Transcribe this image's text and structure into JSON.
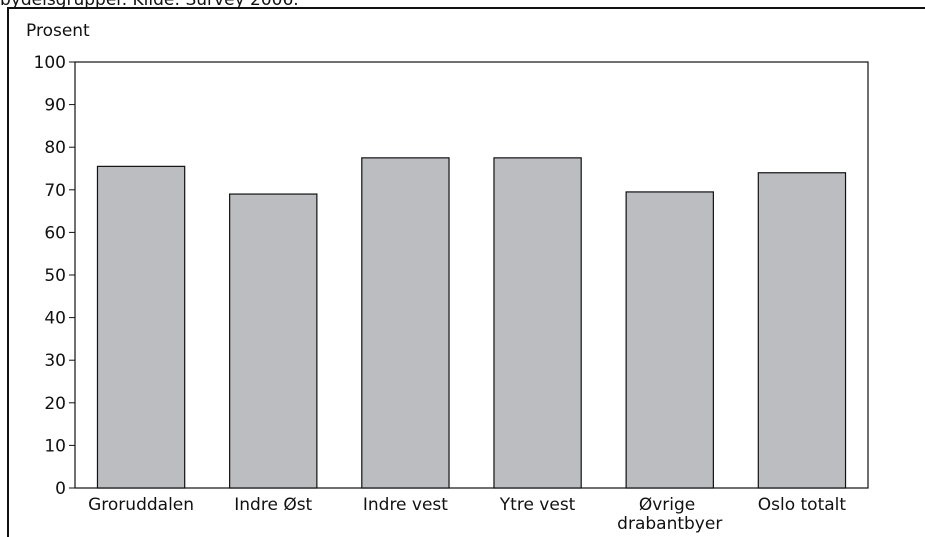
{
  "chart_data": {
    "type": "bar",
    "caption": "bydelsgrupper. Kilde: Survey 2006.",
    "ylabel": "Prosent",
    "categories": [
      "Groruddalen",
      "Indre Øst",
      "Indre vest",
      "Ytre vest",
      "Øvrige drabantbyer",
      "Oslo totalt"
    ],
    "values": [
      75.5,
      69,
      77.5,
      77.5,
      69.5,
      74
    ],
    "color": "#bcbdc0",
    "ylim": [
      0,
      100
    ],
    "yticks": [
      0,
      10,
      20,
      30,
      40,
      50,
      60,
      70,
      80,
      90,
      100
    ],
    "grid": false
  }
}
